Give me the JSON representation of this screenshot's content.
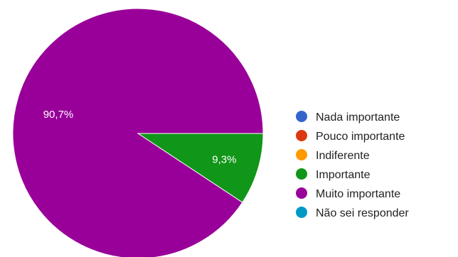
{
  "chart_data": {
    "type": "pie",
    "title": "",
    "categories": [
      "Nada importante",
      "Pouco importante",
      "Indiferente",
      "Importante",
      "Muito importante",
      "Não sei responder"
    ],
    "values": [
      0,
      0,
      0,
      9.3,
      90.7,
      0
    ],
    "value_labels": [
      "",
      "",
      "",
      "9,3%",
      "90,7%",
      ""
    ],
    "colors": [
      "#3366cc",
      "#dc3912",
      "#ff9900",
      "#109618",
      "#990099",
      "#0099c6"
    ],
    "legend_position": "right"
  }
}
